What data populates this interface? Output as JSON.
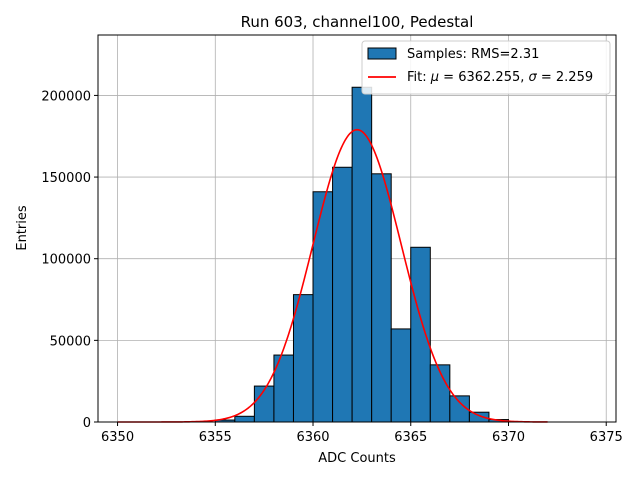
{
  "chart_data": {
    "type": "bar",
    "title": "Run 603, channel100, Pedestal",
    "xlabel": "ADC Counts",
    "ylabel": "Entries",
    "xlim": [
      6349,
      6375.5
    ],
    "ylim": [
      0,
      237000
    ],
    "xticks": [
      6350,
      6355,
      6360,
      6365,
      6370,
      6375
    ],
    "yticks": [
      0,
      50000,
      100000,
      150000,
      200000
    ],
    "grid": true,
    "legend_position": "top-right",
    "colors": {
      "bars": "#1f77b4",
      "bar_edge": "#000000",
      "fit": "#ff0000"
    },
    "histogram": {
      "name": "Samples: RMS=2.31",
      "bin_width": 1.0,
      "bins": [
        {
          "left": 6355,
          "value": 1200
        },
        {
          "left": 6356,
          "value": 3500
        },
        {
          "left": 6357,
          "value": 22000
        },
        {
          "left": 6358,
          "value": 41000
        },
        {
          "left": 6359,
          "value": 78000
        },
        {
          "left": 6360,
          "value": 141000
        },
        {
          "left": 6361,
          "value": 156000
        },
        {
          "left": 6362,
          "value": 205000
        },
        {
          "left": 6363,
          "value": 152000
        },
        {
          "left": 6364,
          "value": 57000
        },
        {
          "left": 6365,
          "value": 107000
        },
        {
          "left": 6366,
          "value": 35000
        },
        {
          "left": 6367,
          "value": 16000
        },
        {
          "left": 6368,
          "value": 6000
        },
        {
          "left": 6369,
          "value": 1500
        }
      ]
    },
    "fit": {
      "name_prefix": "Fit: ",
      "mu_symbol": "μ",
      "sigma_symbol": "σ",
      "mu_text": " = 6362.255, ",
      "sigma_text": " = 2.259",
      "mu": 6362.255,
      "sigma": 2.259,
      "amplitude": 179000,
      "x_range": [
        6350,
        6372
      ]
    }
  }
}
